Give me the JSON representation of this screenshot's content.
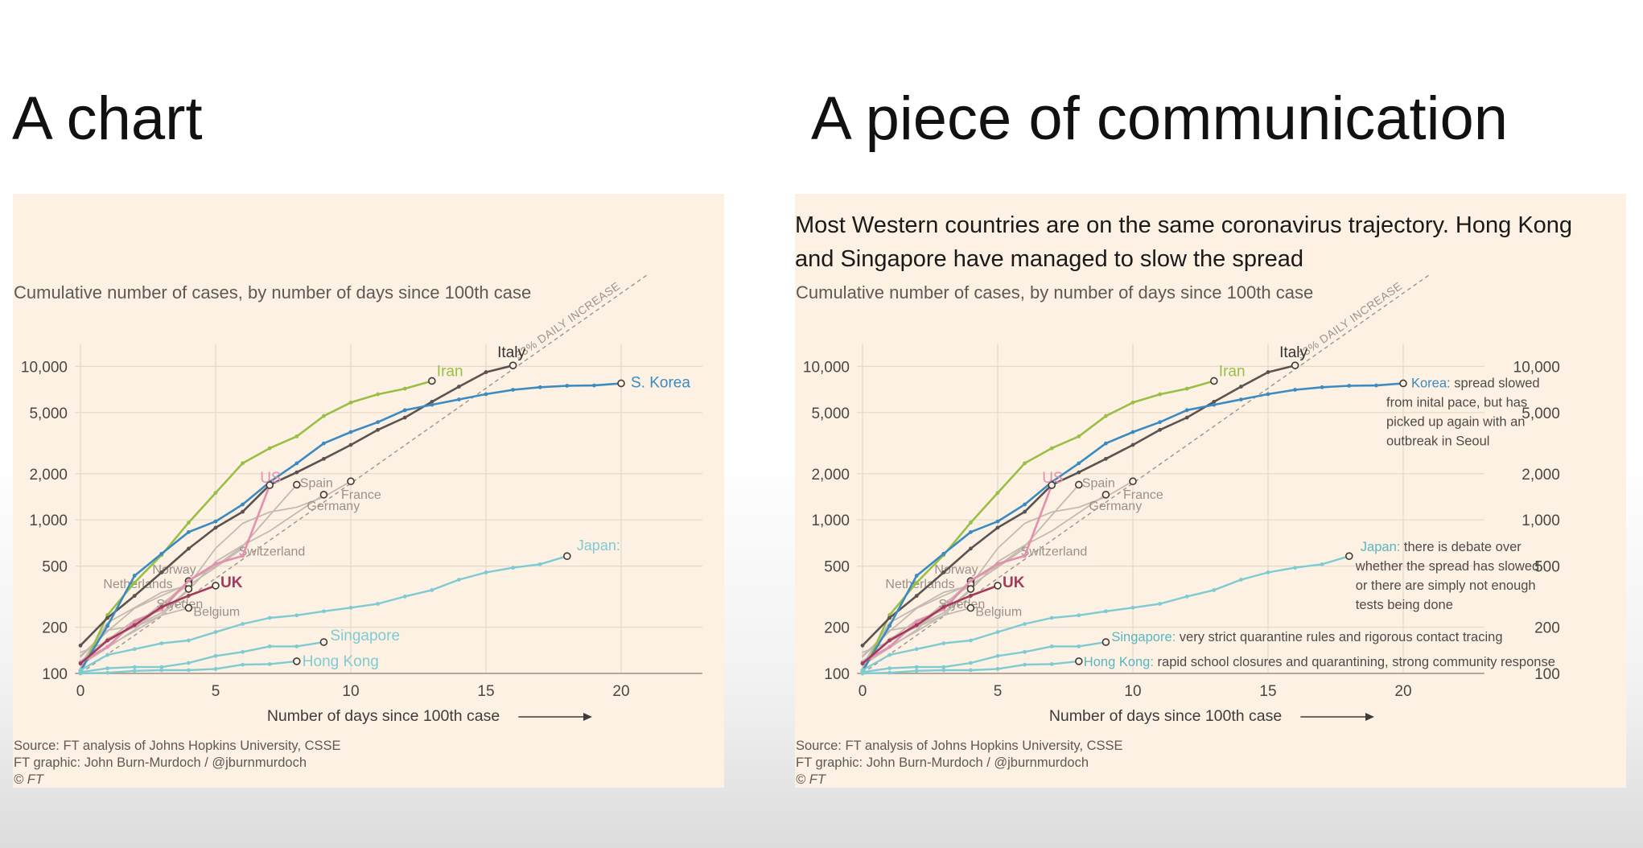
{
  "slide": {
    "left_title": "A chart",
    "right_title": "A piece of communication"
  },
  "panel": {
    "headline": "Most Western countries are on the same coronavirus trajectory. Hong Kong and Singapore have managed to slow the spread",
    "subtitle": "Cumulative number of cases, by number of days since 100th case",
    "xlabel": "Number of days since 100th case",
    "source": [
      "Source: FT analysis of Johns Hopkins University, CSSE",
      "FT graphic: John Burn-Murdoch / @jburnmurdoch",
      "© FT"
    ],
    "trend_label": "33% DAILY INCREASE"
  },
  "annotations": {
    "korea_name": "Korea:",
    "korea_note": [
      "spread slowed",
      "from inital pace, but has",
      "picked up again with an",
      "outbreak in Seoul"
    ],
    "japan_name": "Japan:",
    "japan_note": [
      "there is debate over",
      "whether the spread has slowed",
      "or there are simply not enough",
      "tests being done"
    ],
    "singapore_name": "Singapore:",
    "singapore_note": "very strict quarantine rules and rigorous contact tracing",
    "hongkong_name": "Hong Kong:",
    "hongkong_note": "rapid school closures and quarantining, strong community response"
  },
  "colors": {
    "panel_bg": "#fdf1e3",
    "grid": "#e3d8ca",
    "trend": "#9e948a",
    "text_gray": "#5d5955"
  },
  "chart_data": {
    "type": "line",
    "subtitle": "Cumulative number of cases, by number of days since 100th case",
    "xlabel": "Number of days since 100th case",
    "ylabel": "",
    "xlim": [
      0,
      23
    ],
    "ylim": [
      100,
      14000
    ],
    "yscale": "log",
    "x_ticks": [
      0,
      5,
      10,
      15,
      20
    ],
    "y_ticks": [
      100,
      200,
      500,
      1000,
      2000,
      5000,
      10000
    ],
    "y_tick_labels": [
      "100",
      "200",
      "500",
      "1,000",
      "2,000",
      "5,000",
      "10,000"
    ],
    "grid": true,
    "reference_line": {
      "label": "33% DAILY INCREASE",
      "start": [
        0,
        100
      ],
      "daily_growth": 1.33,
      "x_end": 21
    },
    "series": [
      {
        "name": "Iran",
        "label": "Iran",
        "color": "#9abf47",
        "width": 2.6,
        "end_marker": true,
        "values": [
          [
            0,
            100
          ],
          [
            1,
            240
          ],
          [
            2,
            390
          ],
          [
            3,
            590
          ],
          [
            4,
            960
          ],
          [
            5,
            1500
          ],
          [
            6,
            2340
          ],
          [
            7,
            2930
          ],
          [
            8,
            3500
          ],
          [
            9,
            4750
          ],
          [
            10,
            5820
          ],
          [
            11,
            6580
          ],
          [
            12,
            7160
          ],
          [
            13,
            8040
          ]
        ]
      },
      {
        "name": "Italy",
        "label": "Italy",
        "color": "#5b5351",
        "width": 2.6,
        "end_marker": true,
        "values": [
          [
            0,
            152
          ],
          [
            1,
            230
          ],
          [
            2,
            320
          ],
          [
            3,
            455
          ],
          [
            4,
            650
          ],
          [
            5,
            890
          ],
          [
            6,
            1130
          ],
          [
            7,
            1690
          ],
          [
            8,
            2040
          ],
          [
            9,
            2500
          ],
          [
            10,
            3080
          ],
          [
            11,
            3860
          ],
          [
            12,
            4640
          ],
          [
            13,
            5880
          ],
          [
            14,
            7380
          ],
          [
            15,
            9170
          ],
          [
            16,
            10150
          ]
        ]
      },
      {
        "name": "S. Korea",
        "label": "S. Korea",
        "color": "#3b8bc2",
        "width": 2.6,
        "end_marker": true,
        "values": [
          [
            0,
            104
          ],
          [
            1,
            204
          ],
          [
            2,
            433
          ],
          [
            3,
            602
          ],
          [
            4,
            833
          ],
          [
            5,
            977
          ],
          [
            6,
            1261
          ],
          [
            7,
            1766
          ],
          [
            8,
            2337
          ],
          [
            9,
            3150
          ],
          [
            10,
            3736
          ],
          [
            11,
            4335
          ],
          [
            12,
            5186
          ],
          [
            13,
            5621
          ],
          [
            14,
            6088
          ],
          [
            15,
            6593
          ],
          [
            16,
            7041
          ],
          [
            17,
            7313
          ],
          [
            18,
            7478
          ],
          [
            19,
            7513
          ],
          [
            20,
            7755
          ]
        ]
      },
      {
        "name": "Japan",
        "label": "Japan:",
        "color": "#7fcbd3",
        "width": 2.4,
        "end_marker": true,
        "values": [
          [
            0,
            105
          ],
          [
            1,
            132
          ],
          [
            2,
            144
          ],
          [
            3,
            157
          ],
          [
            4,
            164
          ],
          [
            5,
            186
          ],
          [
            6,
            210
          ],
          [
            7,
            230
          ],
          [
            8,
            239
          ],
          [
            9,
            254
          ],
          [
            10,
            268
          ],
          [
            11,
            284
          ],
          [
            12,
            317
          ],
          [
            13,
            349
          ],
          [
            14,
            408
          ],
          [
            15,
            455
          ],
          [
            16,
            488
          ],
          [
            17,
            514
          ],
          [
            18,
            581
          ]
        ]
      },
      {
        "name": "Singapore",
        "label": "Singapore",
        "color": "#7fcbd3",
        "width": 2.4,
        "end_marker": true,
        "values": [
          [
            0,
            102
          ],
          [
            1,
            108
          ],
          [
            2,
            110
          ],
          [
            3,
            110
          ],
          [
            4,
            117
          ],
          [
            5,
            130
          ],
          [
            6,
            138
          ],
          [
            7,
            150
          ],
          [
            8,
            150
          ],
          [
            9,
            160
          ]
        ]
      },
      {
        "name": "Hong Kong",
        "label": "Hong Kong",
        "color": "#7fcbd3",
        "width": 2.4,
        "end_marker": true,
        "values": [
          [
            0,
            100
          ],
          [
            1,
            101
          ],
          [
            2,
            104
          ],
          [
            3,
            105
          ],
          [
            4,
            105
          ],
          [
            5,
            107
          ],
          [
            6,
            114
          ],
          [
            7,
            115
          ],
          [
            8,
            120
          ]
        ]
      },
      {
        "name": "US",
        "label": "US",
        "color": "#e48fae",
        "width": 2.6,
        "end_marker": true,
        "values": [
          [
            0,
            118
          ],
          [
            1,
            149
          ],
          [
            2,
            217
          ],
          [
            3,
            262
          ],
          [
            4,
            402
          ],
          [
            5,
            518
          ],
          [
            6,
            583
          ],
          [
            7,
            1685
          ]
        ]
      },
      {
        "name": "UK",
        "label": "UK",
        "color": "#a33a5b",
        "width": 2.6,
        "end_marker": true,
        "values": [
          [
            0,
            116
          ],
          [
            1,
            164
          ],
          [
            2,
            206
          ],
          [
            3,
            271
          ],
          [
            4,
            321
          ],
          [
            5,
            373
          ]
        ]
      },
      {
        "name": "Spain",
        "label": "Spain",
        "color": "#c4bab1",
        "width": 1.8,
        "end_marker": true,
        "values": [
          [
            0,
            120
          ],
          [
            1,
            165
          ],
          [
            2,
            222
          ],
          [
            3,
            259
          ],
          [
            4,
            400
          ],
          [
            5,
            500
          ],
          [
            6,
            673
          ],
          [
            7,
            1073
          ],
          [
            8,
            1695
          ]
        ]
      },
      {
        "name": "France",
        "label": "France",
        "color": "#c4bab1",
        "width": 1.8,
        "end_marker": true,
        "values": [
          [
            0,
            130
          ],
          [
            1,
            191
          ],
          [
            2,
            204
          ],
          [
            3,
            285
          ],
          [
            4,
            377
          ],
          [
            5,
            653
          ],
          [
            6,
            949
          ],
          [
            7,
            1126
          ],
          [
            8,
            1209
          ],
          [
            9,
            1412
          ],
          [
            10,
            1784
          ]
        ]
      },
      {
        "name": "Germany",
        "label": "Germany",
        "color": "#c4bab1",
        "width": 1.8,
        "end_marker": true,
        "values": [
          [
            0,
            117
          ],
          [
            1,
            150
          ],
          [
            2,
            188
          ],
          [
            3,
            240
          ],
          [
            4,
            349
          ],
          [
            5,
            534
          ],
          [
            6,
            684
          ],
          [
            7,
            847
          ],
          [
            8,
            1112
          ],
          [
            9,
            1460
          ]
        ]
      },
      {
        "name": "Switzerland",
        "label": "Switzerland",
        "color": "#c4bab1",
        "width": 1.8,
        "end_marker": false,
        "values": [
          [
            0,
            114
          ],
          [
            1,
            214
          ],
          [
            2,
            268
          ],
          [
            3,
            337
          ],
          [
            4,
            374
          ],
          [
            5,
            491
          ],
          [
            6,
            652
          ]
        ]
      },
      {
        "name": "Norway",
        "label": "Norway",
        "color": "#c4bab1",
        "width": 1.8,
        "end_marker": true,
        "values": [
          [
            0,
            113
          ],
          [
            1,
            147
          ],
          [
            2,
            192
          ],
          [
            3,
            277
          ],
          [
            4,
            400
          ]
        ]
      },
      {
        "name": "Netherlands",
        "label": "Netherlands",
        "color": "#c4bab1",
        "width": 1.8,
        "end_marker": true,
        "values": [
          [
            0,
            128
          ],
          [
            1,
            188
          ],
          [
            2,
            265
          ],
          [
            3,
            321
          ],
          [
            4,
            382
          ]
        ]
      },
      {
        "name": "Sweden",
        "label": "Sweden",
        "color": "#c4bab1",
        "width": 1.8,
        "end_marker": true,
        "values": [
          [
            0,
            137
          ],
          [
            1,
            161
          ],
          [
            2,
            203
          ],
          [
            3,
            248
          ],
          [
            4,
            355
          ]
        ]
      },
      {
        "name": "Belgium",
        "label": "Belgium",
        "color": "#c4bab1",
        "width": 1.8,
        "end_marker": true,
        "values": [
          [
            0,
            109
          ],
          [
            1,
            169
          ],
          [
            2,
            200
          ],
          [
            3,
            239
          ],
          [
            4,
            267
          ]
        ]
      }
    ]
  }
}
